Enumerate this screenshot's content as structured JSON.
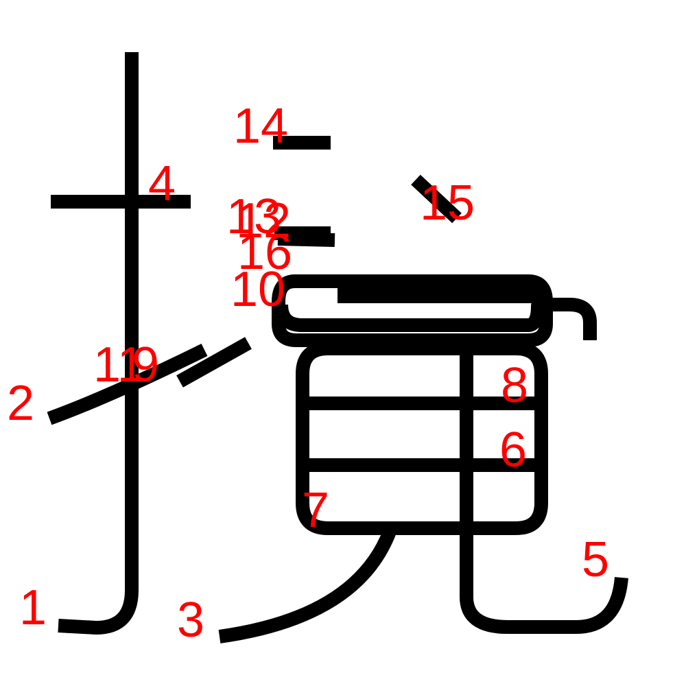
{
  "colors": {
    "background": "#ffffff",
    "stroke": "#000000",
    "label": "#ff0000"
  },
  "stroke_labels": [
    "1",
    "2",
    "3",
    "4",
    "5",
    "6",
    "7",
    "8",
    "9",
    "10",
    "11",
    "12",
    "13",
    "14",
    "15",
    "16"
  ]
}
